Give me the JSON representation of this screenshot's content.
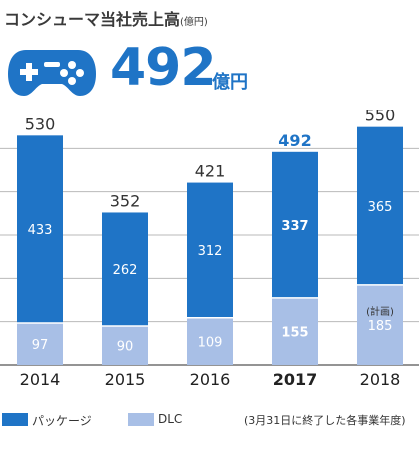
{
  "header": {
    "title": "コンシューマ当社売上高",
    "title_unit": "(億円)"
  },
  "hero": {
    "icon": "gamepad-icon",
    "value": "492",
    "unit": "億円"
  },
  "colors": {
    "package": "#1f74c6",
    "dlc": "#a8bfe6",
    "grid": "#b9b9b9",
    "highlight": "#1f74c6"
  },
  "chart_data": {
    "type": "bar",
    "stacked": true,
    "categories": [
      "2014",
      "2015",
      "2016",
      "2017",
      "2018"
    ],
    "category_sublabels": [
      "",
      "",
      "",
      "",
      "(計画)"
    ],
    "highlight_category": "2017",
    "series": [
      {
        "name": "パッケージ",
        "values": [
          433,
          262,
          312,
          337,
          365
        ]
      },
      {
        "name": "DLC",
        "values": [
          97,
          90,
          109,
          155,
          185
        ]
      }
    ],
    "totals": [
      530,
      352,
      421,
      492,
      550
    ],
    "ylim": [
      0,
      600
    ],
    "grid": true
  },
  "legend": {
    "package_label": "パッケージ",
    "dlc_label": "DLC",
    "note": "(3月31日に終了した各事業年度)"
  }
}
